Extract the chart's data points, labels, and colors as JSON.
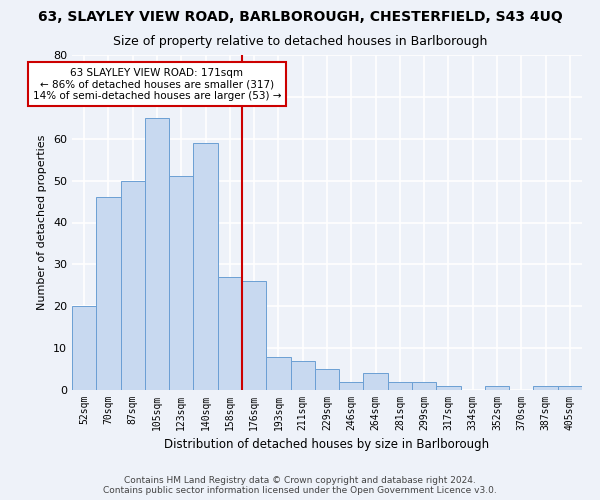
{
  "title1": "63, SLAYLEY VIEW ROAD, BARLBOROUGH, CHESTERFIELD, S43 4UQ",
  "title2": "Size of property relative to detached houses in Barlborough",
  "xlabel": "Distribution of detached houses by size in Barlborough",
  "ylabel": "Number of detached properties",
  "categories": [
    "52sqm",
    "70sqm",
    "87sqm",
    "105sqm",
    "123sqm",
    "140sqm",
    "158sqm",
    "176sqm",
    "193sqm",
    "211sqm",
    "229sqm",
    "246sqm",
    "264sqm",
    "281sqm",
    "299sqm",
    "317sqm",
    "334sqm",
    "352sqm",
    "370sqm",
    "387sqm",
    "405sqm"
  ],
  "values": [
    20,
    46,
    50,
    65,
    51,
    59,
    27,
    26,
    8,
    7,
    5,
    2,
    4,
    2,
    2,
    1,
    0,
    1,
    0,
    1,
    1
  ],
  "bar_color": "#c8d9f0",
  "bar_edge_color": "#6b9fd4",
  "red_line_index": 7,
  "annotation_line1": "63 SLAYLEY VIEW ROAD: 171sqm",
  "annotation_line2": "← 86% of detached houses are smaller (317)",
  "annotation_line3": "14% of semi-detached houses are larger (53) →",
  "ylim": [
    0,
    80
  ],
  "yticks": [
    0,
    10,
    20,
    30,
    40,
    50,
    60,
    70,
    80
  ],
  "footer1": "Contains HM Land Registry data © Crown copyright and database right 2024.",
  "footer2": "Contains public sector information licensed under the Open Government Licence v3.0.",
  "background_color": "#eef2f9",
  "grid_color": "#ffffff",
  "annotation_box_color": "#ffffff",
  "annotation_box_edge": "#cc0000",
  "red_line_color": "#cc0000",
  "title1_fontsize": 10,
  "title2_fontsize": 9,
  "bar_width": 1.0
}
